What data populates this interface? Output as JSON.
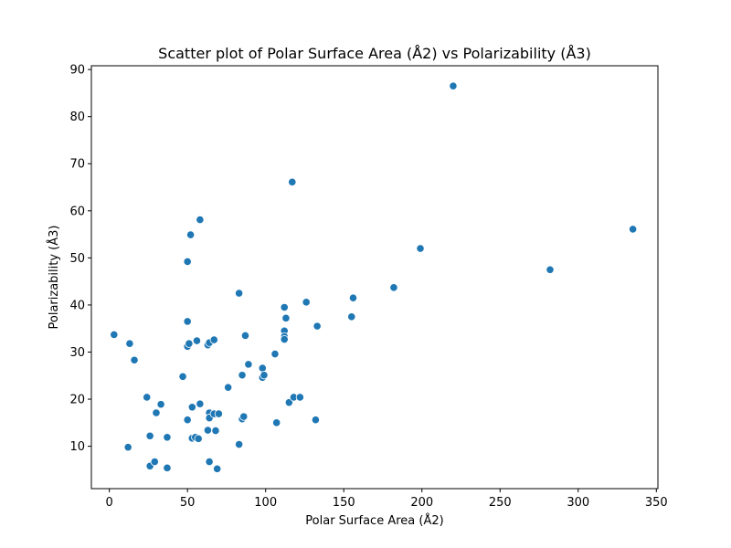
{
  "chart_data": {
    "type": "scatter",
    "title": "Scatter plot of Polar Surface Area (Å2) vs Polarizability (Å3)",
    "xlabel": "Polar Surface Area (Å2)",
    "ylabel": "Polarizability (Å3)",
    "xlim": [
      -11.5,
      351
    ],
    "ylim": [
      1.0,
      90.8
    ],
    "xticks": [
      0,
      50,
      100,
      150,
      200,
      250,
      300,
      350
    ],
    "yticks": [
      10,
      20,
      30,
      40,
      50,
      60,
      70,
      80,
      90
    ],
    "grid": false,
    "legend": "none",
    "point_color": "#1f77b4",
    "points": [
      {
        "x": 3,
        "y": 33.7
      },
      {
        "x": 12,
        "y": 9.8
      },
      {
        "x": 13,
        "y": 31.8
      },
      {
        "x": 16,
        "y": 28.3
      },
      {
        "x": 24,
        "y": 20.4
      },
      {
        "x": 26,
        "y": 12.2
      },
      {
        "x": 26,
        "y": 5.8
      },
      {
        "x": 29,
        "y": 6.7
      },
      {
        "x": 30,
        "y": 17.1
      },
      {
        "x": 33,
        "y": 18.9
      },
      {
        "x": 37,
        "y": 11.9
      },
      {
        "x": 37,
        "y": 5.4
      },
      {
        "x": 47,
        "y": 24.8
      },
      {
        "x": 50,
        "y": 49.2
      },
      {
        "x": 50,
        "y": 36.5
      },
      {
        "x": 50,
        "y": 31.2
      },
      {
        "x": 51,
        "y": 31.8
      },
      {
        "x": 50,
        "y": 15.6
      },
      {
        "x": 52,
        "y": 54.9
      },
      {
        "x": 53,
        "y": 18.3
      },
      {
        "x": 53,
        "y": 11.7
      },
      {
        "x": 55,
        "y": 11.9
      },
      {
        "x": 56,
        "y": 32.4
      },
      {
        "x": 57,
        "y": 11.6
      },
      {
        "x": 58,
        "y": 58.1
      },
      {
        "x": 58,
        "y": 19.0
      },
      {
        "x": 63,
        "y": 31.5
      },
      {
        "x": 64,
        "y": 32.0
      },
      {
        "x": 64,
        "y": 17.1
      },
      {
        "x": 64,
        "y": 16.0
      },
      {
        "x": 63,
        "y": 13.4
      },
      {
        "x": 64,
        "y": 6.7
      },
      {
        "x": 67,
        "y": 32.6
      },
      {
        "x": 67,
        "y": 16.9
      },
      {
        "x": 68,
        "y": 13.3
      },
      {
        "x": 69,
        "y": 5.2
      },
      {
        "x": 70,
        "y": 16.9
      },
      {
        "x": 76,
        "y": 22.5
      },
      {
        "x": 83,
        "y": 42.5
      },
      {
        "x": 83,
        "y": 10.4
      },
      {
        "x": 85,
        "y": 15.8
      },
      {
        "x": 85,
        "y": 25.1
      },
      {
        "x": 86,
        "y": 16.3
      },
      {
        "x": 87,
        "y": 33.5
      },
      {
        "x": 89,
        "y": 27.4
      },
      {
        "x": 98,
        "y": 26.6
      },
      {
        "x": 98,
        "y": 24.6
      },
      {
        "x": 99,
        "y": 25.1
      },
      {
        "x": 106,
        "y": 29.6
      },
      {
        "x": 107,
        "y": 15.0
      },
      {
        "x": 112,
        "y": 39.5
      },
      {
        "x": 112,
        "y": 34.5
      },
      {
        "x": 112,
        "y": 33.3
      },
      {
        "x": 112,
        "y": 32.7
      },
      {
        "x": 113,
        "y": 37.2
      },
      {
        "x": 115,
        "y": 19.3
      },
      {
        "x": 117,
        "y": 66.1
      },
      {
        "x": 118,
        "y": 20.4
      },
      {
        "x": 122,
        "y": 20.4
      },
      {
        "x": 126,
        "y": 40.6
      },
      {
        "x": 132,
        "y": 15.6
      },
      {
        "x": 133,
        "y": 35.5
      },
      {
        "x": 155,
        "y": 37.5
      },
      {
        "x": 156,
        "y": 41.5
      },
      {
        "x": 182,
        "y": 43.7
      },
      {
        "x": 199,
        "y": 52.0
      },
      {
        "x": 220,
        "y": 86.5
      },
      {
        "x": 282,
        "y": 47.5
      },
      {
        "x": 335,
        "y": 56.1
      }
    ]
  }
}
